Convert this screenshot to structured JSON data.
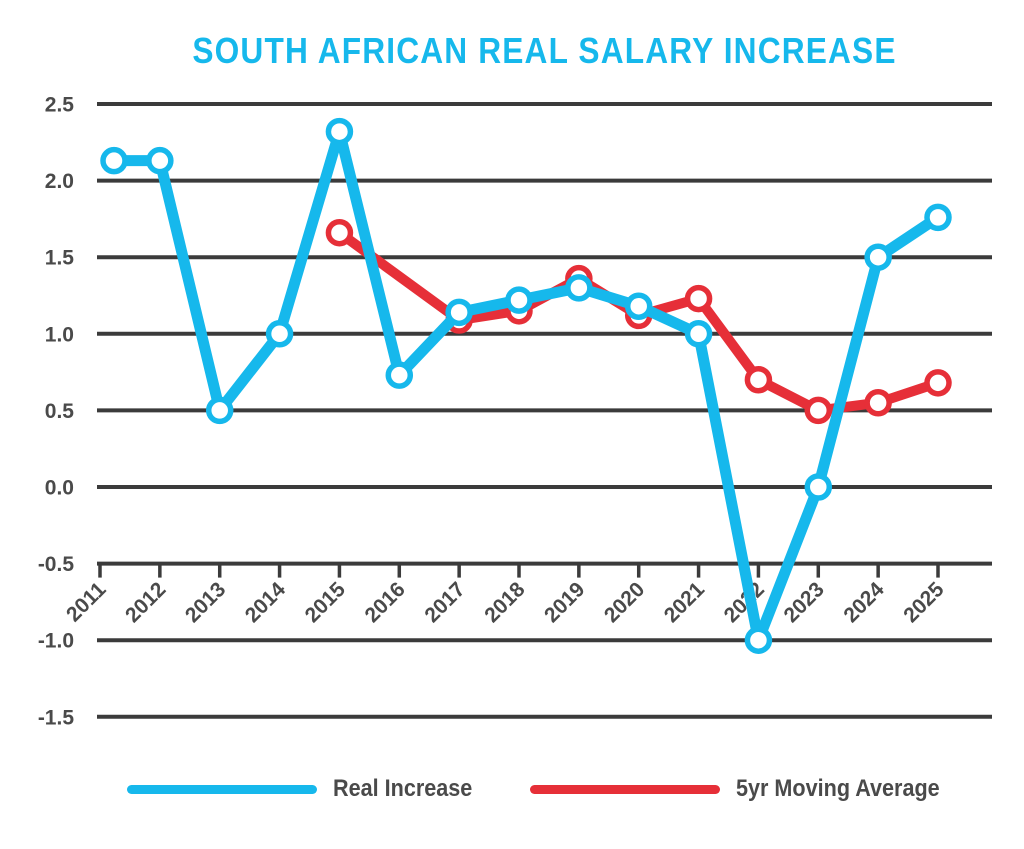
{
  "title": "SOUTH AFRICAN REAL SALARY INCREASE",
  "colors": {
    "cyan": "#16b8ec",
    "red": "#e62f38",
    "gridline": "#3b3b3b",
    "axis_text": "#4a4a4a",
    "title": "#16b8ec",
    "marker_fill": "#ffffff"
  },
  "legend": {
    "items": [
      {
        "label": "Real Increase",
        "color": "#16b8ec"
      },
      {
        "label": "5yr Moving Average",
        "color": "#e62f38"
      }
    ]
  },
  "chart_data": {
    "type": "line",
    "title": "SOUTH AFRICAN REAL SALARY INCREASE",
    "xlabel": "",
    "ylabel": "",
    "categories": [
      "2011",
      "2012",
      "2013",
      "2014",
      "2015",
      "2016",
      "2017",
      "2018",
      "2019",
      "2020",
      "2021",
      "2022",
      "2023",
      "2024",
      "2025"
    ],
    "series": [
      {
        "name": "Real Increase",
        "color": "#16b8ec",
        "values": [
          2.13,
          2.13,
          0.5,
          1.0,
          2.32,
          0.73,
          1.14,
          1.22,
          1.3,
          1.18,
          1.0,
          -1.0,
          0.0,
          1.5,
          1.76
        ]
      },
      {
        "name": "5yr Moving Average",
        "color": "#e62f38",
        "values": [
          null,
          null,
          null,
          null,
          1.66,
          null,
          1.09,
          1.15,
          1.36,
          1.12,
          1.23,
          0.7,
          0.5,
          0.55,
          0.68
        ]
      }
    ],
    "ylim": [
      -1.5,
      2.5
    ],
    "yticks": [
      2.5,
      2.0,
      1.5,
      1.0,
      0.5,
      0.0,
      -0.5,
      -1.0,
      -1.5
    ],
    "x_axis_position": -0.5,
    "grid": true,
    "x_tick_label_rotation": -45,
    "marker": "circle-white-fill",
    "legend_position": "bottom"
  }
}
